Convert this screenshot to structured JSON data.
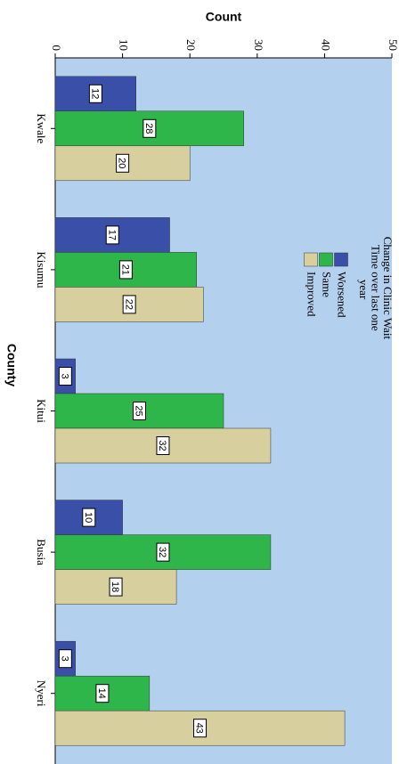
{
  "chart_data": {
    "type": "bar",
    "y_label": "Count",
    "x_label": "County",
    "legend_title": "Change in Clinic Wait Time over last one year",
    "categories": [
      "Kwale",
      "Kisumu",
      "Kitui",
      "Busia",
      "Nyeri"
    ],
    "series": [
      {
        "name": "Worsened",
        "color": "#3a4fa8",
        "values": [
          12,
          17,
          3,
          10,
          3
        ]
      },
      {
        "name": "Same",
        "color": "#2fb64b",
        "values": [
          28,
          21,
          25,
          32,
          14
        ]
      },
      {
        "name": "Improved",
        "color": "#d7cf9e",
        "values": [
          20,
          22,
          32,
          18,
          43
        ]
      }
    ],
    "ylim": [
      0,
      50
    ],
    "yticks": [
      0,
      10,
      20,
      30,
      40,
      50
    ],
    "background": "#b3d0ee",
    "data_labels": true
  }
}
